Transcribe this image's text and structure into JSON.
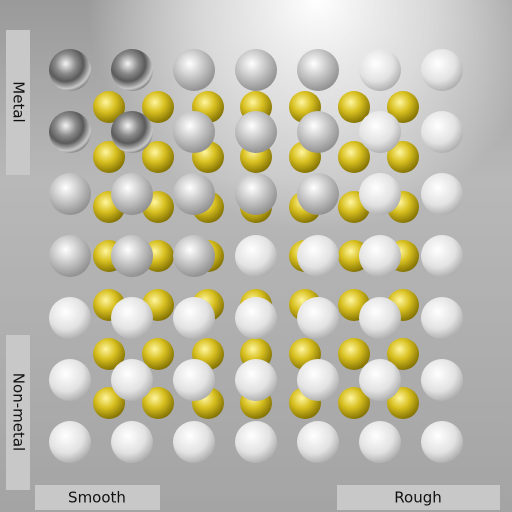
{
  "labels": {
    "metal": "Metal",
    "non_metal": "Non-metal",
    "smooth": "Smooth",
    "rough": "Rough"
  }
}
